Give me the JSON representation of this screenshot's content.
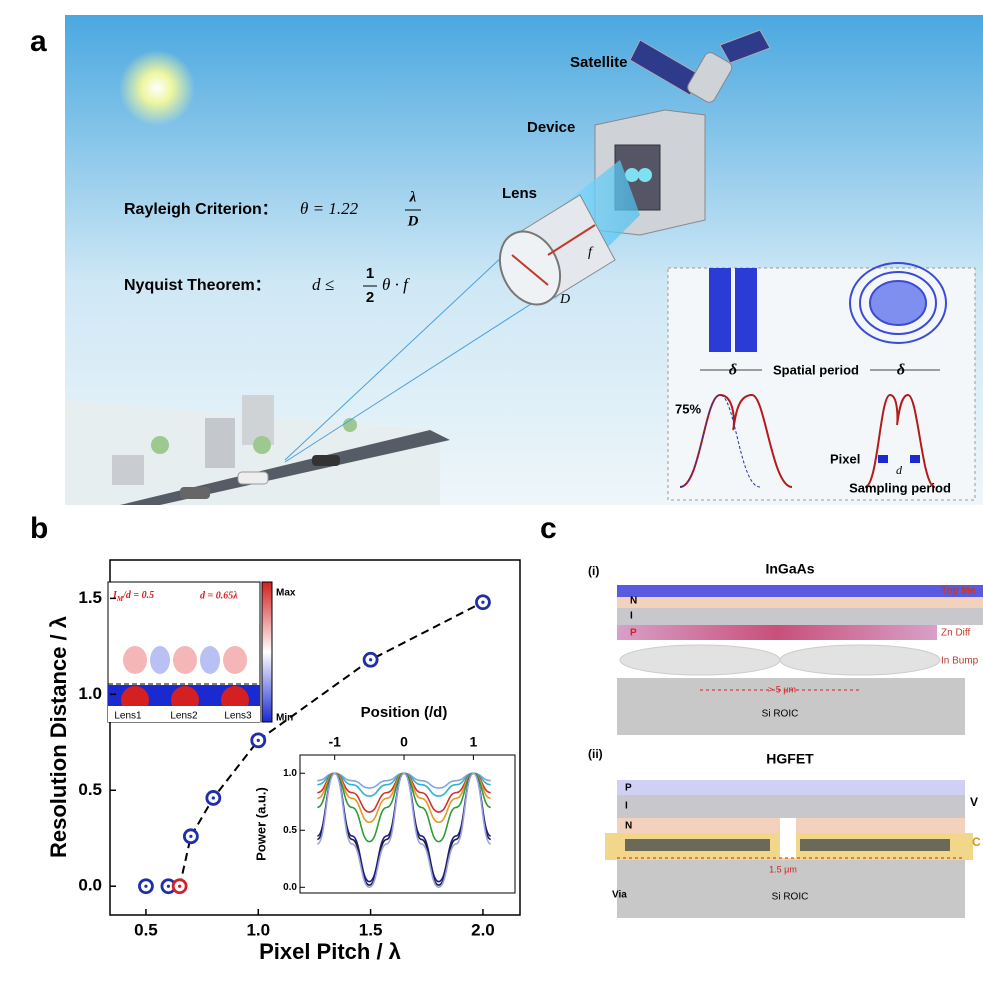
{
  "panel_a": {
    "label": "a",
    "satellite": "Satellite",
    "device": "Device",
    "lens": "Lens",
    "rayleigh": "Rayleigh Criterion：",
    "rayleigh_eq": "θ = 1.22",
    "lambda": "λ",
    "D_frac": "D",
    "nyquist": "Nyquist Theorem：",
    "nyquist_eq": "d ≤",
    "one": "1",
    "two": "2",
    "theta_f": "θ · f",
    "f": "f",
    "D": "D",
    "delta_left": "δ",
    "delta_right": "δ",
    "spatial_period": "Spatial period",
    "percent": "75%",
    "pixel": "Pixel",
    "d": "d",
    "sampling_period": "Sampling period"
  },
  "chart_data": {
    "type": "scatter",
    "panel_label": "b",
    "xlabel": "Pixel Pitch / λ",
    "ylabel": "Resolution Distance / λ",
    "x": [
      0.5,
      0.6,
      0.65,
      0.7,
      0.8,
      1.0,
      1.5,
      2.0
    ],
    "values": [
      0,
      0,
      0,
      0.26,
      0.46,
      0.76,
      1.18,
      1.48
    ],
    "point_colors": [
      "#1f2fa8",
      "#1f2fa8",
      "#d4202a",
      "#1f2fa8",
      "#1f2fa8",
      "#1f2fa8",
      "#1f2fa8",
      "#1f2fa8"
    ],
    "fit_line": {
      "x": [
        0.65,
        0.7,
        0.8,
        1.0,
        1.5,
        2.0
      ],
      "values": [
        0,
        0.26,
        0.46,
        0.76,
        1.18,
        1.48
      ]
    },
    "xlim": [
      0.34,
      2.165
    ],
    "ylim": [
      -0.15,
      1.7
    ],
    "xticks": [
      0.5,
      {
        "value": 1.0,
        "label": "1.0"
      },
      1.5,
      {
        "value": 2.0,
        "label": "2.0"
      }
    ],
    "yticks": [
      {
        "value": 0.0,
        "label": "0.0"
      },
      0.5,
      {
        "value": 1.0,
        "label": "1.0"
      },
      1.5
    ],
    "inset_field": {
      "im_label": "I",
      "im_sub": "M",
      "im_ratio": "/d = 0.5",
      "d_label": "d = 0.65λ",
      "max": "Max",
      "min": "Min",
      "lenses": [
        "Lens1",
        "Lens2",
        "Lens3"
      ]
    },
    "inset_power": {
      "type": "line",
      "xlabel": "Position (/d)",
      "ylabel": "Power (a.u.)",
      "x": [
        -1.25,
        -1,
        -0.75,
        -0.5,
        -0.25,
        0,
        0.25,
        0.5,
        0.75,
        1,
        1.25
      ],
      "xlim": [
        -1.5,
        1.6
      ],
      "ylim": [
        -0.05,
        1.16
      ],
      "xticks": [
        -1,
        0,
        1
      ],
      "yticks": [
        {
          "value": 0.0,
          "label": "0.0"
        },
        0.5,
        {
          "value": 1.0,
          "label": "1.0"
        }
      ],
      "series": [
        {
          "color": "#7ea6e0",
          "values": [
            0.935,
            1,
            0.935,
            0.87,
            0.935,
            1,
            0.935,
            0.87,
            0.935,
            1,
            0.935
          ]
        },
        {
          "color": "#2fb5c9",
          "values": [
            0.9,
            1,
            0.9,
            0.8,
            0.9,
            1,
            0.9,
            0.8,
            0.9,
            1,
            0.9
          ]
        },
        {
          "color": "#d2312a",
          "values": [
            0.83,
            1,
            0.83,
            0.66,
            0.83,
            1,
            0.83,
            0.66,
            0.83,
            1,
            0.83
          ]
        },
        {
          "color": "#e39a2d",
          "values": [
            0.78,
            1,
            0.78,
            0.57,
            0.78,
            1,
            0.78,
            0.57,
            0.78,
            1,
            0.78
          ]
        },
        {
          "color": "#2e9c3a",
          "values": [
            0.7,
            1,
            0.7,
            0.4,
            0.7,
            1,
            0.7,
            0.4,
            0.7,
            1,
            0.7
          ]
        },
        {
          "color": "#1c1c9c",
          "values": [
            0.45,
            1,
            0.45,
            0.05,
            0.45,
            1,
            0.45,
            0.05,
            0.45,
            1,
            0.45
          ]
        },
        {
          "color": "#222222",
          "values": [
            0.42,
            1,
            0.42,
            0.02,
            0.42,
            1,
            0.42,
            0.02,
            0.42,
            1,
            0.42
          ]
        },
        {
          "color": "#9aa0e8",
          "values": [
            0.38,
            1,
            0.38,
            0.0,
            0.38,
            1,
            0.38,
            0.0,
            0.38,
            1,
            0.38
          ]
        }
      ]
    }
  },
  "panel_c": {
    "label": "c",
    "part_i": {
      "label": "(i)",
      "title": "InGaAs",
      "layers": [
        "N",
        "I",
        "P"
      ],
      "top_metal": "Top Me",
      "zn_diff": "Zn Diff",
      "in_bump": "In Bump",
      "spacing": "> 5 μm",
      "substrate": "Si ROIC"
    },
    "part_ii": {
      "label": "(ii)",
      "title": "HGFET",
      "layers": [
        "P",
        "I",
        "N"
      ],
      "v": "V",
      "c": "C",
      "spacing": "1.5 μm",
      "via": "Via",
      "substrate": "Si ROIC"
    }
  }
}
